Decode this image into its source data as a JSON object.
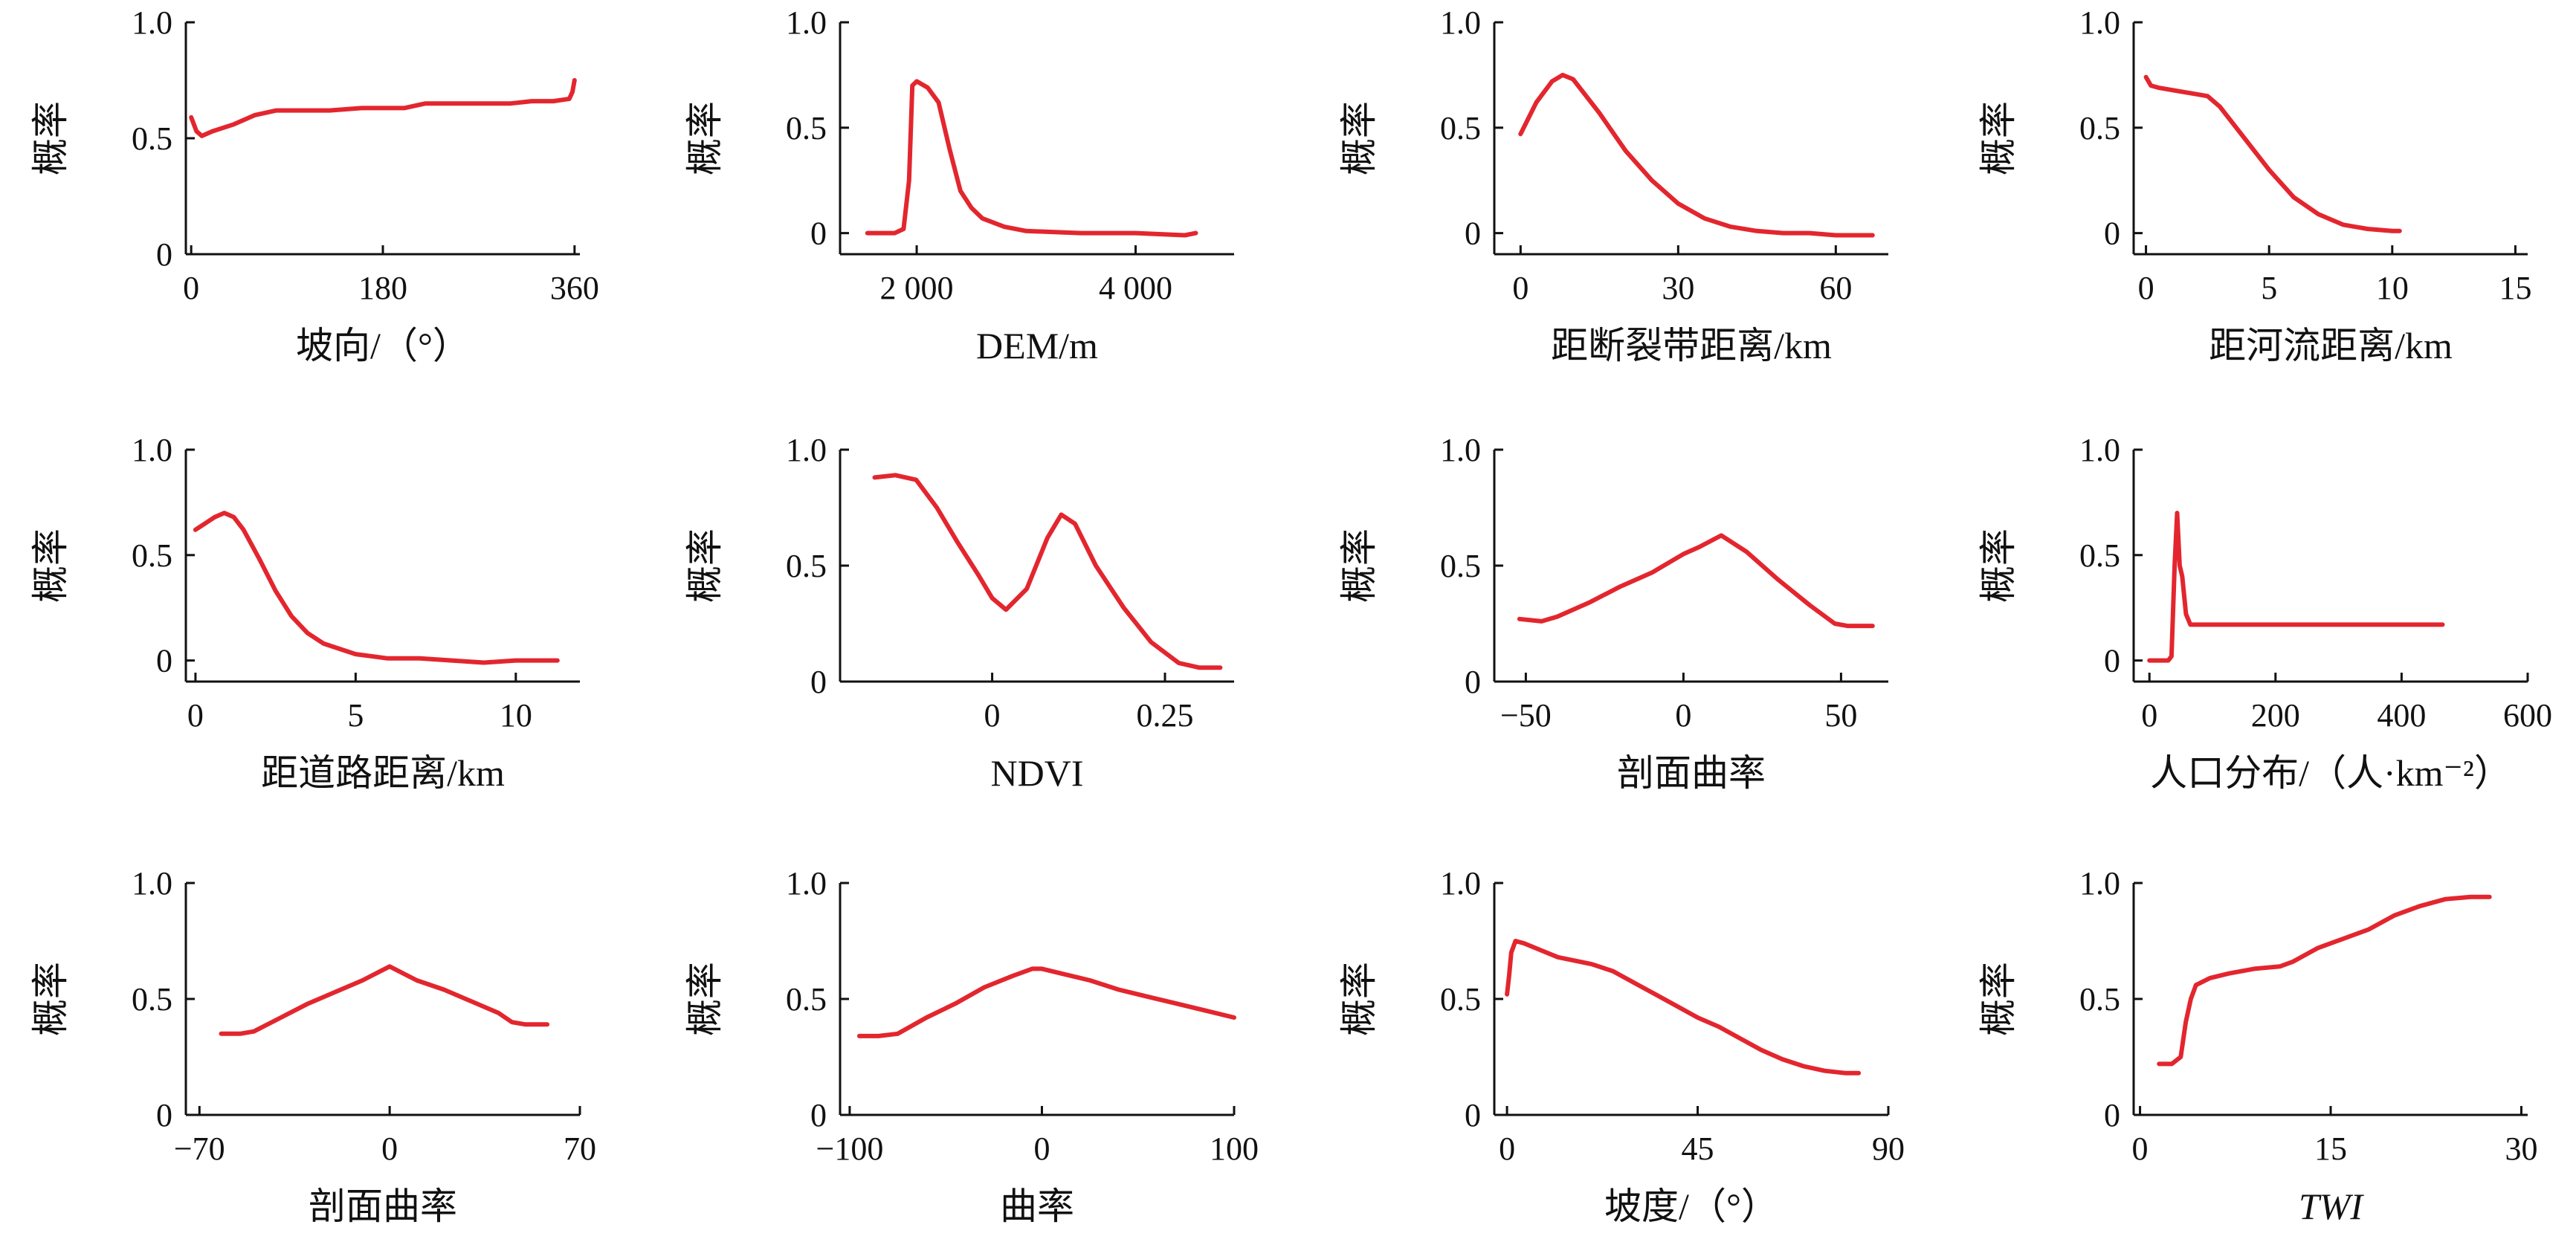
{
  "y_axis_label": "概率",
  "line_color": "#e3262e",
  "chart_data": [
    {
      "type": "line",
      "xlabel": "坡向/（°）",
      "xlim": [
        -5,
        365
      ],
      "ylim": [
        0,
        1.0
      ],
      "xticks": [
        0,
        180,
        360
      ],
      "xtick_labels": [
        "0",
        "180",
        "360"
      ],
      "yticks": [
        0,
        0.5,
        1.0
      ],
      "ytick_labels": [
        "0",
        "0.5",
        "1.0"
      ],
      "x": [
        0,
        5,
        10,
        20,
        40,
        60,
        80,
        100,
        130,
        160,
        180,
        200,
        220,
        240,
        260,
        280,
        300,
        320,
        340,
        355,
        358,
        360
      ],
      "y": [
        0.59,
        0.53,
        0.51,
        0.53,
        0.56,
        0.6,
        0.62,
        0.62,
        0.62,
        0.63,
        0.63,
        0.63,
        0.65,
        0.65,
        0.65,
        0.65,
        0.65,
        0.66,
        0.66,
        0.67,
        0.7,
        0.75
      ]
    },
    {
      "type": "line",
      "xlabel": "DEM/m",
      "xlim": [
        1300,
        4900
      ],
      "ylim": [
        -0.1,
        1.0
      ],
      "xticks": [
        2000,
        4000
      ],
      "xtick_labels": [
        "2 000",
        "4 000"
      ],
      "yticks": [
        0,
        0.5,
        1.0
      ],
      "ytick_labels": [
        "0",
        "0.5",
        "1.0"
      ],
      "x": [
        1550,
        1800,
        1880,
        1930,
        1960,
        2000,
        2100,
        2200,
        2300,
        2400,
        2500,
        2600,
        2800,
        3000,
        3500,
        4000,
        4450,
        4550
      ],
      "y": [
        0,
        0,
        0.02,
        0.25,
        0.7,
        0.72,
        0.69,
        0.62,
        0.4,
        0.2,
        0.12,
        0.07,
        0.03,
        0.01,
        0,
        0,
        -0.01,
        0
      ]
    },
    {
      "type": "line",
      "xlabel": "距断裂带距离/km",
      "xlim": [
        -5,
        70
      ],
      "ylim": [
        -0.1,
        1.0
      ],
      "xticks": [
        0,
        30,
        60
      ],
      "xtick_labels": [
        "0",
        "30",
        "60"
      ],
      "yticks": [
        0,
        0.5,
        1.0
      ],
      "ytick_labels": [
        "0",
        "0.5",
        "1.0"
      ],
      "x": [
        0,
        1,
        3,
        6,
        8,
        10,
        15,
        20,
        25,
        30,
        35,
        40,
        45,
        50,
        55,
        60,
        65,
        67
      ],
      "y": [
        0.47,
        0.52,
        0.62,
        0.72,
        0.75,
        0.73,
        0.57,
        0.39,
        0.25,
        0.14,
        0.07,
        0.03,
        0.01,
        0,
        0,
        -0.01,
        -0.01,
        -0.01
      ],
      "x_suffix": ""
    },
    {
      "type": "line",
      "xlabel": "距河流距离/km",
      "xlim": [
        -0.5,
        15.5
      ],
      "ylim": [
        -0.1,
        1.0
      ],
      "xticks": [
        0,
        5,
        10,
        15
      ],
      "xtick_labels": [
        "0",
        "5",
        "10",
        "15"
      ],
      "yticks": [
        0,
        0.5,
        1.0
      ],
      "ytick_labels": [
        "0",
        "0.5",
        "1.0"
      ],
      "x": [
        0,
        0.2,
        0.5,
        1,
        2,
        2.5,
        3,
        4,
        5,
        6,
        7,
        8,
        9,
        10,
        10.3
      ],
      "y": [
        0.74,
        0.7,
        0.69,
        0.68,
        0.66,
        0.65,
        0.6,
        0.45,
        0.3,
        0.17,
        0.09,
        0.04,
        0.02,
        0.01,
        0.01
      ]
    },
    {
      "type": "line",
      "xlabel": "距道路距离/km",
      "xlim": [
        -0.3,
        12
      ],
      "ylim": [
        -0.1,
        1.0
      ],
      "xticks": [
        0,
        5,
        10
      ],
      "xtick_labels": [
        "0",
        "5",
        "10"
      ],
      "yticks": [
        0,
        0.5,
        1.0
      ],
      "ytick_labels": [
        "0",
        "0.5",
        "1.0"
      ],
      "x": [
        0,
        0.3,
        0.6,
        0.9,
        1.2,
        1.5,
        2,
        2.5,
        3,
        3.5,
        4,
        5,
        6,
        7,
        8,
        9,
        10,
        11.3
      ],
      "y": [
        0.62,
        0.65,
        0.68,
        0.7,
        0.68,
        0.62,
        0.48,
        0.33,
        0.21,
        0.13,
        0.08,
        0.03,
        0.01,
        0.01,
        0,
        -0.01,
        0,
        0
      ]
    },
    {
      "type": "line",
      "xlabel": "NDVI",
      "xlim": [
        -0.22,
        0.35
      ],
      "ylim": [
        0,
        1.0
      ],
      "xticks": [
        0,
        0.25
      ],
      "xtick_labels": [
        "0",
        "0.25"
      ],
      "yticks": [
        0,
        0.5,
        1.0
      ],
      "ytick_labels": [
        "0",
        "0.5",
        "1.0"
      ],
      "x": [
        -0.17,
        -0.14,
        -0.11,
        -0.08,
        -0.05,
        -0.02,
        0.0,
        0.02,
        0.05,
        0.08,
        0.1,
        0.12,
        0.15,
        0.19,
        0.23,
        0.27,
        0.3,
        0.33
      ],
      "y": [
        0.88,
        0.89,
        0.87,
        0.75,
        0.6,
        0.46,
        0.36,
        0.31,
        0.4,
        0.62,
        0.72,
        0.68,
        0.5,
        0.32,
        0.17,
        0.08,
        0.06,
        0.06
      ]
    },
    {
      "type": "line",
      "xlabel": "剖面曲率",
      "xlim": [
        -60,
        65
      ],
      "ylim": [
        0,
        1.0
      ],
      "xticks": [
        -50,
        0,
        50
      ],
      "xtick_labels": [
        "−50",
        "0",
        "50"
      ],
      "yticks": [
        0,
        0.5,
        1.0
      ],
      "ytick_labels": [
        "0",
        "0.5",
        "1.0"
      ],
      "x": [
        -52,
        -45,
        -40,
        -30,
        -20,
        -10,
        0,
        5,
        12,
        20,
        30,
        40,
        48,
        52,
        60
      ],
      "y": [
        0.27,
        0.26,
        0.28,
        0.34,
        0.41,
        0.47,
        0.55,
        0.58,
        0.63,
        0.56,
        0.44,
        0.33,
        0.25,
        0.24,
        0.24
      ]
    },
    {
      "type": "line",
      "xlabel": "人口分布/（人·km⁻²）",
      "xlim": [
        -25,
        600
      ],
      "ylim": [
        -0.1,
        1.0
      ],
      "xticks": [
        0,
        200,
        400,
        600
      ],
      "xtick_labels": [
        "0",
        "200",
        "400",
        "600"
      ],
      "yticks": [
        0,
        0.5,
        1.0
      ],
      "ytick_labels": [
        "0",
        "0.5",
        "1.0"
      ],
      "x": [
        0,
        30,
        35,
        40,
        44,
        48,
        52,
        58,
        65,
        100,
        150,
        200,
        300,
        400,
        465
      ],
      "y": [
        0,
        0,
        0.02,
        0.45,
        0.7,
        0.45,
        0.4,
        0.22,
        0.17,
        0.17,
        0.17,
        0.17,
        0.17,
        0.17,
        0.17
      ]
    },
    {
      "type": "line",
      "xlabel": "剖面曲率",
      "xlim": [
        -75,
        70
      ],
      "ylim": [
        0,
        1.0
      ],
      "xticks": [
        -70,
        0,
        70
      ],
      "xtick_labels": [
        "−70",
        "0",
        "70"
      ],
      "yticks": [
        0,
        0.5,
        1.0
      ],
      "ytick_labels": [
        "0",
        "0.5",
        "1.0"
      ],
      "x": [
        -62,
        -55,
        -50,
        -40,
        -30,
        -20,
        -10,
        0,
        10,
        20,
        30,
        40,
        45,
        50,
        58
      ],
      "y": [
        0.35,
        0.35,
        0.36,
        0.42,
        0.48,
        0.53,
        0.58,
        0.64,
        0.58,
        0.54,
        0.49,
        0.44,
        0.4,
        0.39,
        0.39
      ]
    },
    {
      "type": "line",
      "xlabel": "曲率",
      "xlim": [
        -105,
        100
      ],
      "ylim": [
        0,
        1.0
      ],
      "xticks": [
        -100,
        0,
        100
      ],
      "xtick_labels": [
        "−100",
        "0",
        "100"
      ],
      "yticks": [
        0,
        0.5,
        1.0
      ],
      "ytick_labels": [
        "0",
        "0.5",
        "1.0"
      ],
      "x": [
        -95,
        -85,
        -75,
        -60,
        -45,
        -30,
        -15,
        -5,
        0,
        10,
        25,
        40,
        55,
        70,
        85,
        100
      ],
      "y": [
        0.34,
        0.34,
        0.35,
        0.42,
        0.48,
        0.55,
        0.6,
        0.63,
        0.63,
        0.61,
        0.58,
        0.54,
        0.51,
        0.48,
        0.45,
        0.42
      ]
    },
    {
      "type": "line",
      "xlabel": "坡度/（°）",
      "xlim": [
        -3,
        90
      ],
      "ylim": [
        0,
        1.0
      ],
      "xticks": [
        0,
        45,
        90
      ],
      "xtick_labels": [
        "0",
        "45",
        "90"
      ],
      "yticks": [
        0,
        0.5,
        1.0
      ],
      "ytick_labels": [
        "0",
        "0.5",
        "1.0"
      ],
      "x": [
        0,
        0.5,
        1,
        2,
        4,
        8,
        12,
        20,
        25,
        30,
        35,
        40,
        45,
        50,
        55,
        60,
        65,
        70,
        75,
        80,
        83
      ],
      "y": [
        0.52,
        0.6,
        0.7,
        0.75,
        0.74,
        0.71,
        0.68,
        0.65,
        0.62,
        0.57,
        0.52,
        0.47,
        0.42,
        0.38,
        0.33,
        0.28,
        0.24,
        0.21,
        0.19,
        0.18,
        0.18
      ]
    },
    {
      "type": "line",
      "xlabel": "TWI",
      "xlabel_italic": true,
      "xlim": [
        -0.5,
        30.5
      ],
      "ylim": [
        0,
        1.0
      ],
      "xticks": [
        0,
        15,
        30
      ],
      "xtick_labels": [
        "0",
        "15",
        "30"
      ],
      "yticks": [
        0,
        0.5,
        1.0
      ],
      "ytick_labels": [
        "0",
        "0.5",
        "1.0"
      ],
      "x": [
        1.5,
        2.5,
        3.2,
        3.6,
        4.0,
        4.4,
        5.5,
        7,
        9,
        11,
        12,
        13,
        14,
        16,
        18,
        20,
        22,
        24,
        26,
        27.5
      ],
      "y": [
        0.22,
        0.22,
        0.25,
        0.4,
        0.5,
        0.56,
        0.59,
        0.61,
        0.63,
        0.64,
        0.66,
        0.69,
        0.72,
        0.76,
        0.8,
        0.86,
        0.9,
        0.93,
        0.94,
        0.94
      ]
    }
  ]
}
